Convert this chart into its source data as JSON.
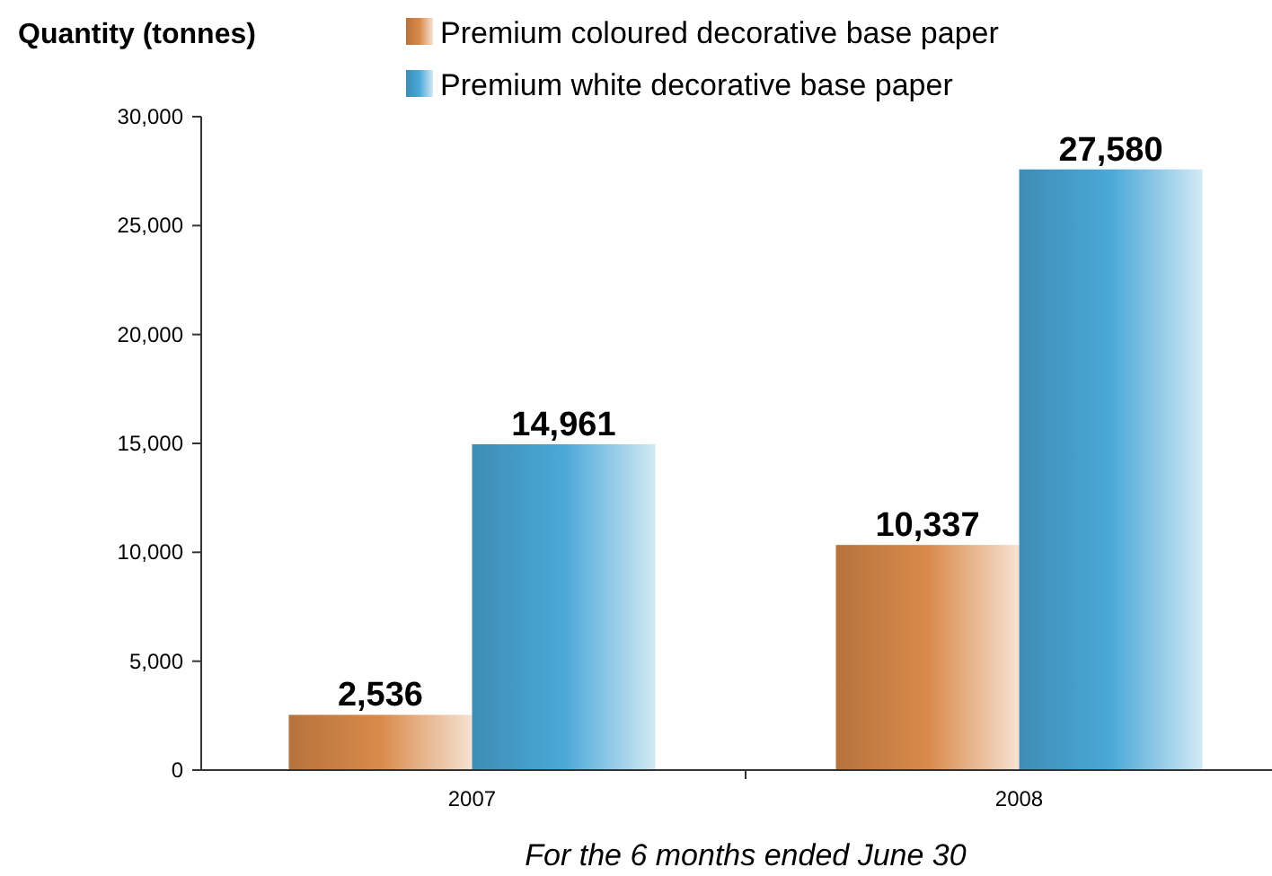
{
  "chart_data": {
    "type": "bar",
    "ylabel": "Quantity (tonnes)",
    "xlabel": "For the 6 months ended June 30",
    "categories": [
      "2007",
      "2008"
    ],
    "series": [
      {
        "name": "Premium coloured decorative base paper",
        "color": "#d98a4a",
        "values": [
          2536,
          10337
        ]
      },
      {
        "name": "Premium white decorative base paper",
        "color": "#4aa8d8",
        "values": [
          14961,
          27580
        ]
      }
    ],
    "ylim": [
      0,
      30000
    ],
    "yticks": [
      {
        "value": 0,
        "label": "0"
      },
      {
        "value": 5000,
        "label": "5,000"
      },
      {
        "value": 10000,
        "label": "10,000"
      },
      {
        "value": 15000,
        "label": "15,000"
      },
      {
        "value": 20000,
        "label": "20,000"
      },
      {
        "value": 25000,
        "label": "25,000"
      },
      {
        "value": 30000,
        "label": "30,000"
      }
    ],
    "value_labels": [
      [
        "2,536",
        "10,337"
      ],
      [
        "14,961",
        "27,580"
      ]
    ],
    "legend": "top",
    "grid": false
  }
}
